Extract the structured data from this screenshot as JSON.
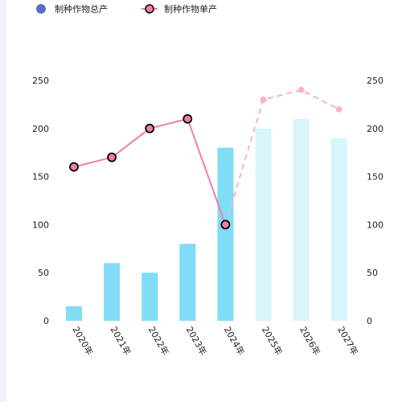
{
  "chart_data": {
    "type": "bar+line",
    "categories": [
      "2020年",
      "2021年",
      "2022年",
      "2023年",
      "2024年",
      "2025年",
      "2026年",
      "2027年"
    ],
    "series": [
      {
        "name": "制种作物总产",
        "type": "bar",
        "axis": "left",
        "values": [
          15,
          60,
          50,
          80,
          180,
          200,
          210,
          190
        ],
        "forecast_from_index": 5
      },
      {
        "name": "制种作物单产",
        "type": "line",
        "axis": "right",
        "values": [
          160,
          170,
          200,
          210,
          100,
          230,
          240,
          220
        ],
        "forecast_from_index": 5
      }
    ],
    "ylim_left": [
      0,
      250
    ],
    "ylim_right": [
      0,
      250
    ],
    "yticks": [
      0,
      50,
      100,
      150,
      200,
      250
    ],
    "legend_position": "top-left",
    "colors": {
      "bar_actual": "#80dcf7",
      "bar_forecast": "#d8f4fc",
      "line_actual": "#ef7fa5",
      "line_forecast": "#f7b3ca",
      "marker_fill": "#ef7fa5",
      "marker_stroke": "#000000",
      "legend_bar_icon": "#5470c6"
    }
  }
}
